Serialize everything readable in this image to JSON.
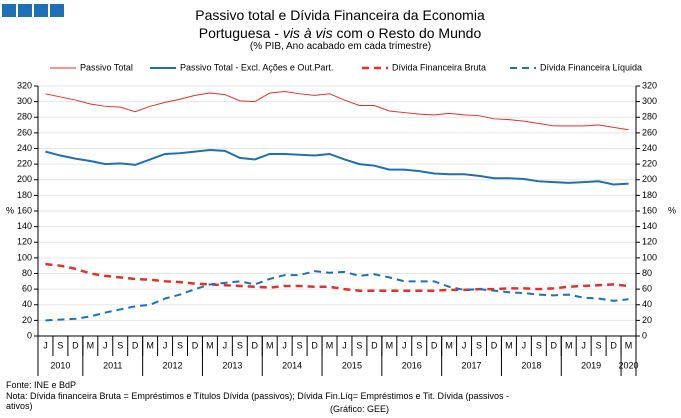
{
  "chart_data": {
    "type": "line",
    "title": [
      "Passivo total e Dívida Financeira da Economia Portuguesa - ",
      "vis à vis",
      " com o Resto do Mundo"
    ],
    "subtitle": "(% PIB, Ano acabado em cada trimestre)",
    "ylabel": "%",
    "y2label": "%",
    "categories": [
      "J",
      "S",
      "D",
      "M",
      "J",
      "S",
      "D",
      "M",
      "J",
      "S",
      "D",
      "M",
      "J",
      "S",
      "D",
      "M",
      "J",
      "S",
      "D",
      "M",
      "J",
      "S",
      "D",
      "M",
      "J",
      "S",
      "D",
      "M",
      "J",
      "S",
      "D",
      "M",
      "J",
      "S",
      "D",
      "M",
      "J",
      "S",
      "D",
      "M"
    ],
    "years": [
      "2010",
      "2011",
      "2012",
      "2013",
      "2014",
      "2015",
      "2016",
      "2017",
      "2018",
      "2019",
      "2020"
    ],
    "ylim": [
      0,
      320
    ],
    "yticks": [
      0,
      20,
      40,
      60,
      80,
      100,
      120,
      140,
      160,
      180,
      200,
      220,
      240,
      260,
      280,
      300,
      320
    ],
    "y2lim": [
      0,
      320
    ],
    "y2ticks": [
      0,
      20,
      40,
      60,
      80,
      100,
      120,
      140,
      160,
      180,
      200,
      220,
      240,
      260,
      280,
      300,
      320
    ],
    "series": [
      {
        "name": "Passivo Total",
        "color": "#e0312c",
        "width": 1,
        "dash": false,
        "values": [
          310,
          306,
          302,
          297,
          294,
          293,
          287,
          294,
          299,
          303,
          308,
          311,
          309,
          301,
          300,
          311,
          313,
          310,
          308,
          310,
          302,
          295,
          295,
          288,
          286,
          284,
          283,
          285,
          283,
          282,
          278,
          277,
          275,
          272,
          269,
          269,
          269,
          270,
          267,
          264
        ]
      },
      {
        "name": "Passivo Total - Excl. Ações e Out.Part.",
        "color": "#1f6fb5",
        "width": 2,
        "dash": false,
        "values": [
          236,
          231,
          227,
          224,
          220,
          221,
          219,
          226,
          233,
          234,
          236,
          238,
          237,
          228,
          226,
          233,
          233,
          232,
          231,
          233,
          226,
          220,
          218,
          213,
          213,
          211,
          208,
          207,
          207,
          205,
          202,
          202,
          201,
          198,
          197,
          196,
          197,
          198,
          194,
          195
        ]
      },
      {
        "name": "Dívida Financeira Bruta",
        "color": "#e0312c",
        "width": 2.5,
        "dash": true,
        "values": [
          92,
          90,
          86,
          80,
          77,
          75,
          73,
          72,
          70,
          69,
          67,
          66,
          65,
          64,
          63,
          62,
          64,
          64,
          63,
          63,
          60,
          58,
          58,
          58,
          58,
          58,
          58,
          59,
          59,
          60,
          60,
          61,
          61,
          60,
          61,
          63,
          64,
          65,
          66,
          64
        ]
      },
      {
        "name": "Dívida Financeira Líquida",
        "color": "#1f6fb5",
        "width": 2,
        "dash": true,
        "values": [
          20,
          21,
          22,
          25,
          30,
          34,
          38,
          40,
          48,
          53,
          60,
          66,
          68,
          70,
          66,
          73,
          78,
          78,
          83,
          81,
          82,
          77,
          79,
          75,
          70,
          70,
          70,
          63,
          59,
          60,
          58,
          56,
          55,
          53,
          52,
          53,
          49,
          48,
          45,
          47
        ]
      }
    ],
    "grid": true,
    "notes": [
      "Fonte: INE e BdP",
      "Nota: Dívida financeira Bruta = Empréstimos e Títulos Dívida (passivos); Dívida Fin.Líq= Empréstimos e Tit. Dívida (passivos - ativos)",
      "(Gráfico: GEE)"
    ]
  }
}
